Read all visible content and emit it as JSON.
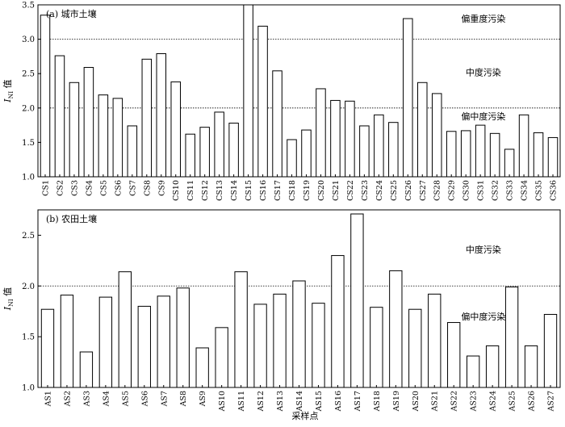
{
  "figure": {
    "xlabel": "采样点"
  },
  "chart_data": [
    {
      "type": "bar",
      "panel_label": "(a) 城市土壤",
      "ylabel_main": "I",
      "ylabel_sub": "NI",
      "ylabel_suffix": " 值",
      "ylim": [
        1.0,
        3.5
      ],
      "yticks": [
        1.0,
        1.5,
        2.0,
        2.5,
        3.0,
        3.5
      ],
      "ytick_labels": [
        "1.0",
        "1.5",
        "2.0",
        "2.5",
        "3.0",
        "3.5"
      ],
      "reference_lines": [
        2.0,
        3.0
      ],
      "zone_labels": [
        {
          "text": "偏重度污染",
          "y": 3.3
        },
        {
          "text": "中度污染",
          "y": 2.52
        },
        {
          "text": "偏中度污染",
          "y": 1.88
        }
      ],
      "categories": [
        "CS1",
        "CS2",
        "CS3",
        "CS4",
        "CS5",
        "CS6",
        "CS7",
        "CS8",
        "CS9",
        "CS10",
        "CS11",
        "CS12",
        "CS13",
        "CS14",
        "CS15",
        "CS16",
        "CS17",
        "CS18",
        "CS19",
        "CS20",
        "CS21",
        "CS22",
        "CS23",
        "CS24",
        "CS25",
        "CS26",
        "CS27",
        "CS28",
        "CS29",
        "CS30",
        "CS31",
        "CS32",
        "CS33",
        "CS34",
        "CS35",
        "CS36"
      ],
      "values": [
        3.35,
        2.76,
        2.37,
        2.59,
        2.19,
        2.14,
        1.74,
        2.71,
        2.79,
        2.38,
        1.62,
        1.72,
        1.94,
        1.78,
        3.5,
        3.19,
        2.54,
        1.54,
        1.68,
        2.28,
        2.11,
        2.1,
        1.74,
        1.9,
        1.79,
        3.3,
        2.37,
        2.21,
        1.66,
        1.67,
        1.75,
        1.63,
        1.4,
        1.9,
        1.64,
        1.57
      ]
    },
    {
      "type": "bar",
      "panel_label": "(b) 农田土壤",
      "ylabel_main": "I",
      "ylabel_sub": "NI",
      "ylabel_suffix": " 值",
      "ylim": [
        1.0,
        2.75
      ],
      "yticks": [
        1.0,
        1.5,
        2.0,
        2.5
      ],
      "ytick_labels": [
        "1.0",
        "1.5",
        "2.0",
        "2.5"
      ],
      "reference_lines": [
        2.0
      ],
      "zone_labels": [
        {
          "text": "中度污染",
          "y": 2.36
        },
        {
          "text": "偏中度污染",
          "y": 1.7
        }
      ],
      "categories": [
        "AS1",
        "AS2",
        "AS3",
        "AS4",
        "AS5",
        "AS6",
        "AS7",
        "AS8",
        "AS9",
        "AS10",
        "AS11",
        "AS12",
        "AS13",
        "AS14",
        "AS15",
        "AS16",
        "AS17",
        "AS18",
        "AS19",
        "AS20",
        "AS21",
        "AS22",
        "AS23",
        "AS24",
        "AS25",
        "AS26",
        "AS27"
      ],
      "values": [
        1.77,
        1.91,
        1.35,
        1.89,
        2.14,
        1.8,
        1.9,
        1.98,
        1.39,
        1.59,
        2.14,
        1.82,
        1.92,
        2.05,
        1.83,
        2.3,
        2.71,
        1.79,
        2.15,
        1.77,
        1.92,
        1.64,
        1.31,
        1.41,
        1.99,
        1.41,
        1.72
      ]
    }
  ]
}
